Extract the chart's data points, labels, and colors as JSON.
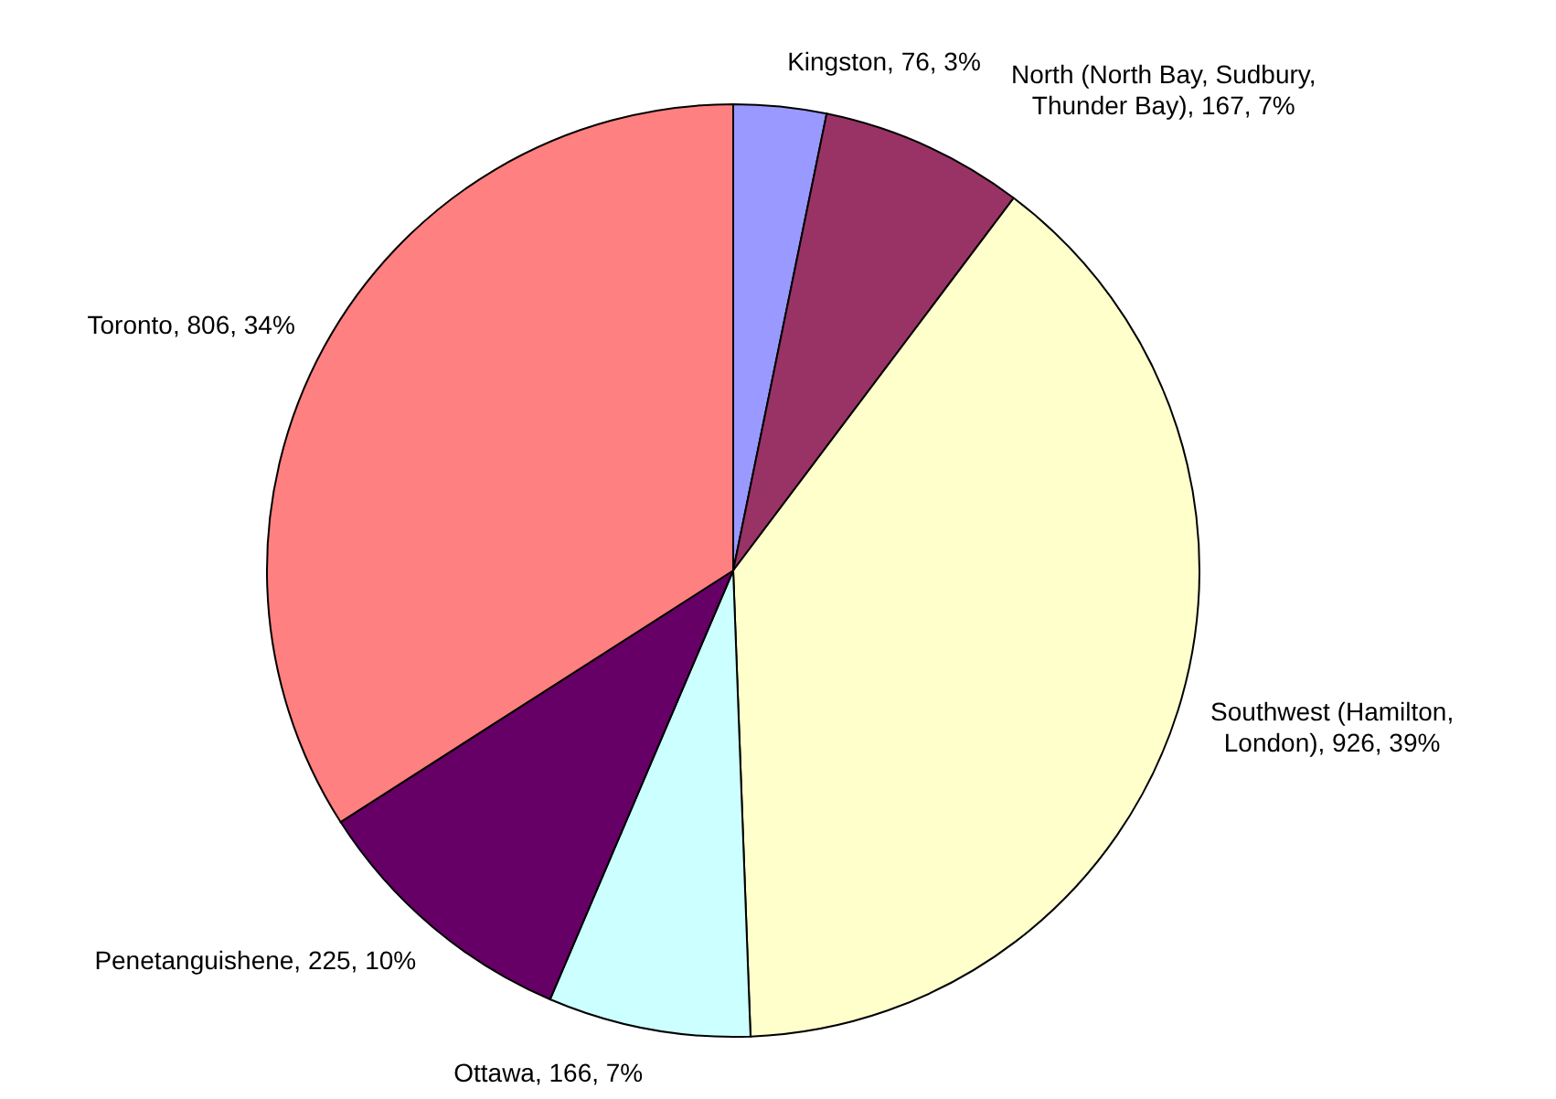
{
  "chart_data": {
    "type": "pie",
    "categories": [
      "Kingston",
      "North (North Bay, Sudbury, Thunder Bay)",
      "Southwest (Hamilton, London)",
      "Ottawa",
      "Penetanguishene",
      "Toronto"
    ],
    "values": [
      76,
      167,
      926,
      166,
      225,
      806
    ],
    "value_labels": [
      "76, 3%",
      "167, 7%",
      "926, 39%",
      "166, 7%",
      "225, 10%",
      "806, 34%"
    ],
    "colors": [
      "#9999ff",
      "#993366",
      "#ffffcc",
      "#ccffff",
      "#660066",
      "#ff8080"
    ]
  }
}
